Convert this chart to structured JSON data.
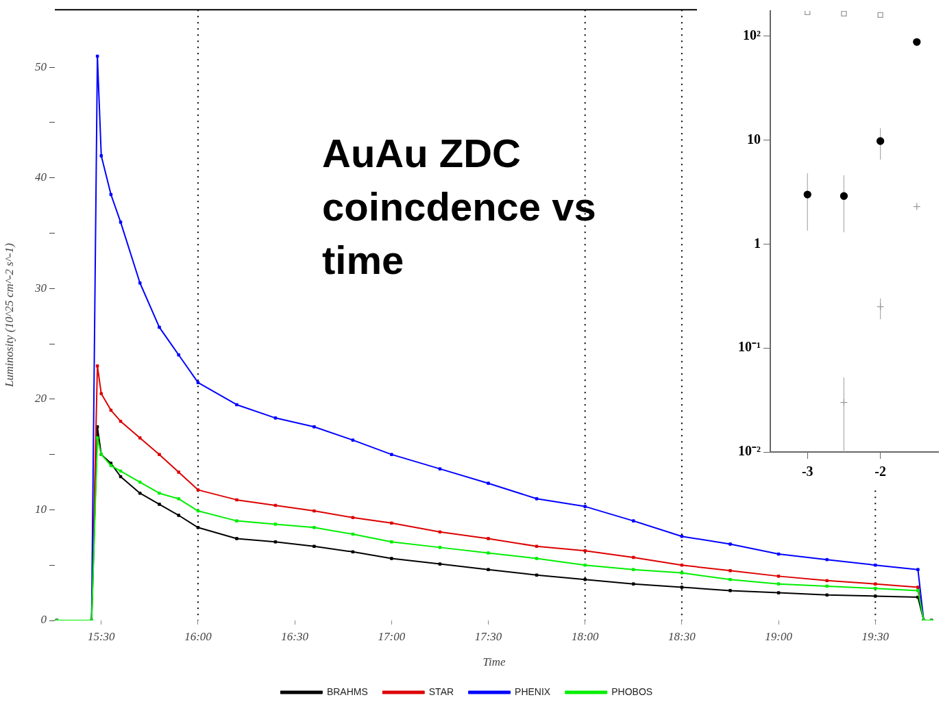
{
  "chart_data": [
    {
      "type": "line",
      "xlabel": "Time",
      "ylabel": "Luminosity (10^25 cm^-2 s^-1)",
      "annotations": [
        "AuAu ZDC coincdence vs time"
      ],
      "x": [
        15.27,
        15.45,
        15.48,
        15.5,
        15.55,
        15.6,
        15.7,
        15.8,
        15.9,
        16,
        16.2,
        16.4,
        16.6,
        16.8,
        17,
        17.25,
        17.5,
        17.75,
        18,
        18.25,
        18.5,
        18.75,
        19,
        19.25,
        19.5,
        19.72,
        19.75,
        19.79
      ],
      "series": [
        {
          "name": "BRAHMS",
          "color": "#000000",
          "values": [
            0,
            0,
            17.5,
            15,
            14.2,
            13,
            11.5,
            10.5,
            9.5,
            8.4,
            7.4,
            7.1,
            6.7,
            6.2,
            5.6,
            5.1,
            4.6,
            4.1,
            3.7,
            3.3,
            3.0,
            2.7,
            2.5,
            2.3,
            2.2,
            2.1,
            0,
            0
          ]
        },
        {
          "name": "STAR",
          "color": "#dd0000",
          "values": [
            0,
            0,
            23,
            20.5,
            19,
            18,
            16.5,
            15,
            13.4,
            11.8,
            10.9,
            10.4,
            9.9,
            9.3,
            8.8,
            8.0,
            7.4,
            6.7,
            6.3,
            5.7,
            5.0,
            4.5,
            4.0,
            3.6,
            3.3,
            3.0,
            0,
            0
          ]
        },
        {
          "name": "PHENIX",
          "color": "#0000ff",
          "values": [
            0,
            0,
            51,
            42,
            38.5,
            36,
            30.5,
            26.5,
            24,
            21.5,
            19.5,
            18.3,
            17.5,
            16.3,
            15,
            13.7,
            12.4,
            11,
            10.3,
            9,
            7.6,
            6.9,
            6,
            5.5,
            5,
            4.6,
            0,
            0
          ]
        },
        {
          "name": "PHOBOS",
          "color": "#00ee00",
          "values": [
            0,
            0,
            16.5,
            15,
            14,
            13.5,
            12.5,
            11.5,
            11,
            9.9,
            9.0,
            8.7,
            8.4,
            7.8,
            7.1,
            6.6,
            6.1,
            5.6,
            5.0,
            4.6,
            4.3,
            3.7,
            3.3,
            3.1,
            2.9,
            2.7,
            0,
            0
          ]
        }
      ],
      "marker": "square",
      "legend": "bottom",
      "xlim": [
        15.26,
        19.8
      ],
      "xticks": [
        {
          "value": 15.5,
          "label": "15:30"
        },
        {
          "value": 16,
          "label": "16:00"
        },
        {
          "value": 16.5,
          "label": "16:30"
        },
        {
          "value": 17,
          "label": "17:00"
        },
        {
          "value": 17.5,
          "label": "17:30"
        },
        {
          "value": 18,
          "label": "18:00"
        },
        {
          "value": 18.5,
          "label": "18:30"
        },
        {
          "value": 19,
          "label": "19:00"
        },
        {
          "value": 19.5,
          "label": "19:30"
        }
      ],
      "ylim": [
        0,
        55.2
      ],
      "yticks": [
        0,
        {
          "value": 5,
          "label": null
        },
        10,
        {
          "value": 15,
          "label": null
        },
        20,
        {
          "value": 25,
          "label": null
        },
        30,
        {
          "value": 35,
          "label": null
        },
        40,
        {
          "value": 45,
          "label": null
        },
        50
      ],
      "ref_lines": [
        {
          "axis": "x",
          "value": 16,
          "line_style": "dotted",
          "color": "#000000"
        },
        {
          "axis": "x",
          "value": 18,
          "line_style": "dotted",
          "color": "#000000"
        },
        {
          "axis": "x",
          "value": 18.5,
          "line_style": "dotted",
          "color": "#000000"
        },
        {
          "axis": "x",
          "value": 19.5,
          "line_style": "dotted",
          "color": "#000000"
        }
      ]
    },
    {
      "type": "scatter",
      "log": true,
      "series": [
        {
          "color": "#000000",
          "marker": "circle",
          "x": [
            -3,
            -2.5,
            -2,
            -1.5
          ],
          "values": [
            3.0,
            2.9,
            9.8,
            88
          ],
          "errors": [
            [
              1.35,
              4.8
            ],
            [
              1.3,
              4.6
            ],
            [
              6.5,
              13
            ],
            null
          ]
        },
        {
          "color": "#999999",
          "marker": "square",
          "x": [
            -3,
            -2.5,
            -2
          ],
          "values": [
            170,
            165,
            160
          ]
        },
        {
          "color": "#999999",
          "marker": "cross",
          "x": [
            -2.5,
            -2,
            -1.5
          ],
          "values": [
            0.03,
            0.25,
            2.3
          ],
          "errors": [
            [
              0.01,
              0.052
            ],
            [
              0.19,
              0.3
            ],
            null
          ]
        }
      ],
      "xlim": [
        -3.51,
        -1.2
      ],
      "xticks": [
        -3,
        -2
      ],
      "ylim": [
        0.01,
        175
      ],
      "yticks": [
        {
          "value": 0.01,
          "label": "10⁻²"
        },
        {
          "value": 0.1,
          "label": "10⁻¹"
        },
        1,
        10,
        {
          "value": 100,
          "label": "10²"
        }
      ]
    }
  ]
}
